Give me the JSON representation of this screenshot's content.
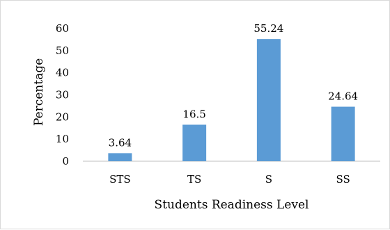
{
  "chart_data": {
    "type": "bar",
    "categories": [
      "STS",
      "TS",
      "S",
      "SS"
    ],
    "values": [
      3.64,
      16.5,
      55.24,
      24.64
    ],
    "data_labels": [
      "3.64",
      "16.5",
      "55.24",
      "24.64"
    ],
    "title": "",
    "xlabel": "Students Readiness Level",
    "ylabel": "Percentage",
    "ylim": [
      0,
      60
    ],
    "yticks": [
      0,
      10,
      20,
      30,
      40,
      50,
      60
    ],
    "grid": false,
    "legend": "none",
    "bar_color": "#5b9bd5"
  }
}
